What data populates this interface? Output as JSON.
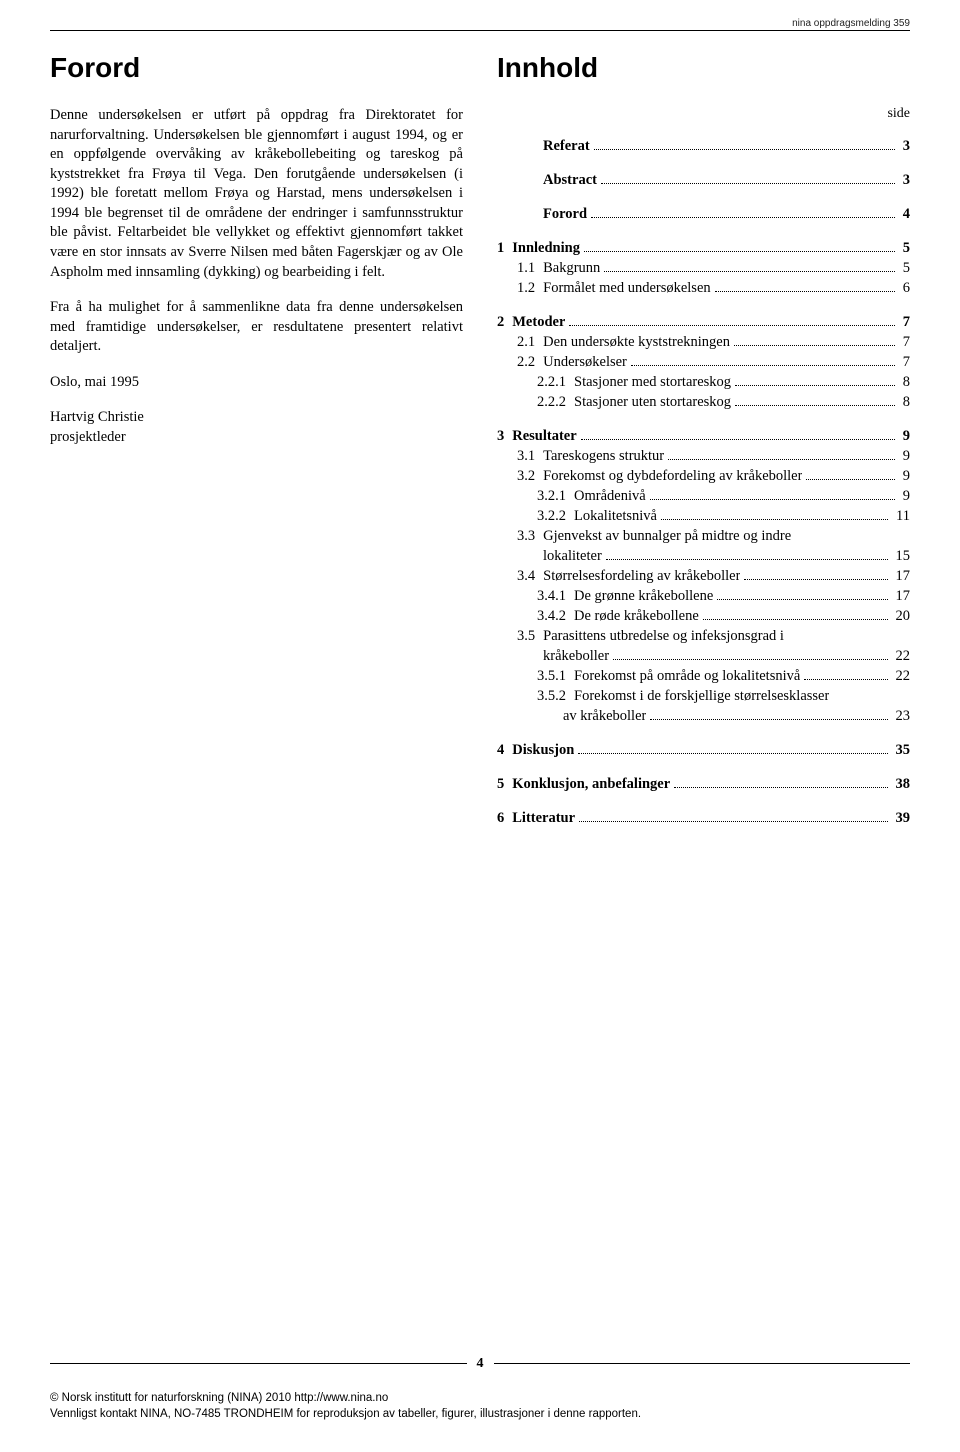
{
  "header": {
    "running": "nina oppdragsmelding 359"
  },
  "left": {
    "title": "Forord",
    "paragraphs": [
      "Denne undersøkelsen er utført på oppdrag fra Direktoratet for narurforvaltning. Undersøkelsen ble gjennomført i august 1994, og er en oppfølgende overvåking av kråkebollebeiting og tareskog på kyststrekket fra Frøya til Vega. Den forutgående undersøkelsen (i 1992) ble foretatt mellom Frøya og Harstad, mens undersøkelsen i 1994 ble begrenset til de områdene der endringer i samfunnsstruktur ble påvist. Feltarbeidet ble vellykket og effektivt gjennomført takket være en stor innsats av Sverre Nilsen med båten Fagerskjær og av Ole Aspholm med innsamling (dykking) og bearbeiding i felt.",
      "Fra å ha mulighet for å sammenlikne data fra denne undersøkelsen med framtidige undersøkelser, er resdultatene presentert relativt detaljert.",
      "Oslo, mai 1995"
    ],
    "signature": {
      "name": "Hartvig Christie",
      "role": "prosjektleder"
    }
  },
  "right": {
    "title": "Innhold",
    "side_label": "side",
    "entries": [
      {
        "level": 0,
        "num": "",
        "label": "Referat",
        "page": "3",
        "bold": true
      },
      {
        "level": 0,
        "num": "",
        "label": "Abstract",
        "page": "3",
        "bold": true
      },
      {
        "level": 0,
        "num": "",
        "label": "Forord",
        "page": "4",
        "bold": true
      },
      {
        "level": 0,
        "num": "1",
        "label": "Innledning",
        "page": "5",
        "bold": true
      },
      {
        "level": 1,
        "num": "1.1",
        "label": "Bakgrunn",
        "page": "5"
      },
      {
        "level": 1,
        "num": "1.2",
        "label": "Formålet med undersøkelsen",
        "page": "6"
      },
      {
        "level": 0,
        "num": "2",
        "label": "Metoder",
        "page": "7",
        "bold": true
      },
      {
        "level": 1,
        "num": "2.1",
        "label": "Den undersøkte kyststrekningen",
        "page": "7"
      },
      {
        "level": 1,
        "num": "2.2",
        "label": "Undersøkelser",
        "page": "7"
      },
      {
        "level": 2,
        "num": "2.2.1",
        "label": "Stasjoner med stortareskog",
        "page": "8"
      },
      {
        "level": 2,
        "num": "2.2.2",
        "label": "Stasjoner uten stortareskog",
        "page": "8"
      },
      {
        "level": 0,
        "num": "3",
        "label": "Resultater",
        "page": "9",
        "bold": true
      },
      {
        "level": 1,
        "num": "3.1",
        "label": "Tareskogens struktur",
        "page": "9"
      },
      {
        "level": 1,
        "num": "3.2",
        "label": "Forekomst og dybdefordeling av kråkeboller",
        "page": "9"
      },
      {
        "level": 2,
        "num": "3.2.1",
        "label": "Områdenivå",
        "page": "9"
      },
      {
        "level": 2,
        "num": "3.2.2",
        "label": "Lokalitetsnivå",
        "page": "11"
      },
      {
        "level": 1,
        "num": "3.3",
        "label": "Gjenvekst av bunnalger på midtre og indre",
        "page": "",
        "nodots": true
      },
      {
        "level": 1,
        "num": "",
        "label": "lokaliteter",
        "page": "15",
        "cont": true
      },
      {
        "level": 1,
        "num": "3.4",
        "label": "Størrelsesfordeling av kråkeboller",
        "page": "17"
      },
      {
        "level": 2,
        "num": "3.4.1",
        "label": "De grønne kråkebollene",
        "page": "17"
      },
      {
        "level": 2,
        "num": "3.4.2",
        "label": "De røde kråkebollene",
        "page": "20"
      },
      {
        "level": 1,
        "num": "3.5",
        "label": "Parasittens utbredelse og infeksjonsgrad i",
        "page": "",
        "nodots": true
      },
      {
        "level": 1,
        "num": "",
        "label": "kråkeboller",
        "page": "22",
        "cont": true
      },
      {
        "level": 2,
        "num": "3.5.1",
        "label": "Forekomst på område og lokalitetsnivå",
        "page": "22"
      },
      {
        "level": 2,
        "num": "3.5.2",
        "label": "Forekomst i de forskjellige størrelsesklasser",
        "page": "",
        "nodots": true
      },
      {
        "level": 2,
        "num": "",
        "label": "av kråkeboller",
        "page": "23",
        "cont": true,
        "contlevel": 2
      },
      {
        "level": 0,
        "num": "4",
        "label": "Diskusjon",
        "page": "35",
        "bold": true
      },
      {
        "level": 0,
        "num": "5",
        "label": "Konklusjon, anbefalinger",
        "page": "38",
        "bold": true
      },
      {
        "level": 0,
        "num": "6",
        "label": "Litteratur",
        "page": "39",
        "bold": true
      }
    ]
  },
  "footer": {
    "page_number": "4",
    "copyright_line1": "© Norsk institutt for naturforskning (NINA) 2010 http://www.nina.no",
    "copyright_line2": "Vennligst kontakt NINA, NO-7485 TRONDHEIM for reproduksjon av tabeller, figurer, illustrasjoner i denne rapporten."
  }
}
